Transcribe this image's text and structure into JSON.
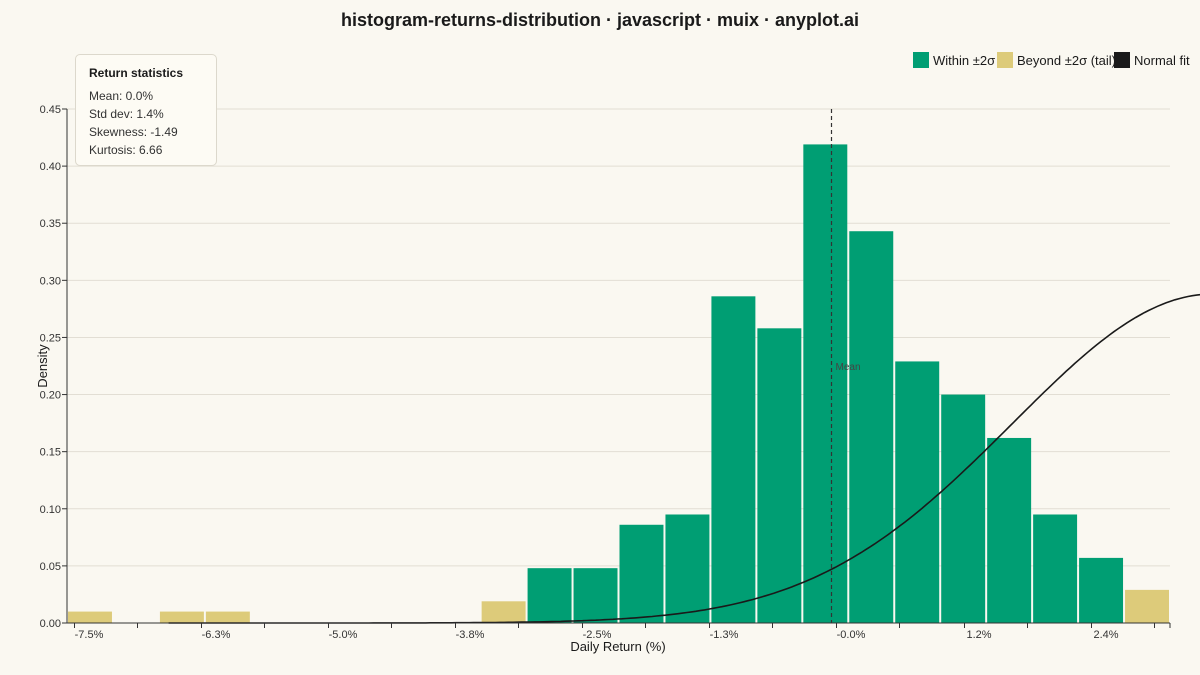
{
  "chart_data": {
    "type": "bar",
    "title": "histogram-returns-distribution · javascript · muix · anyplot.ai",
    "xlabel": "Daily Return (%)",
    "ylabel": "Density",
    "ylim": [
      0,
      0.45
    ],
    "y_ticks": [
      "0.00",
      "0.05",
      "0.10",
      "0.15",
      "0.20",
      "0.25",
      "0.30",
      "0.35",
      "0.40",
      "0.45"
    ],
    "x_tick_labels": [
      "-7.5%",
      "-6.3%",
      "-5.0%",
      "-3.8%",
      "-2.5%",
      "-1.3%",
      "-0.0%",
      "1.2%",
      "2.4%"
    ],
    "grid": "horizontal",
    "legend_position": "top-right",
    "legend": [
      {
        "label": "Within ±2σ",
        "color": "#009E73"
      },
      {
        "label": "Beyond ±2σ (tail)",
        "color": "#DDCB7A"
      },
      {
        "label": "Normal fit",
        "color": "#1A1A1A"
      }
    ],
    "bins": [
      {
        "label": "-7.5%",
        "value": 0.01,
        "group": "tail"
      },
      {
        "label": "",
        "value": 0,
        "group": "tail"
      },
      {
        "label": "-6.3%",
        "value": 0.01,
        "group": "tail"
      },
      {
        "label": "",
        "value": 0.01,
        "group": "tail"
      },
      {
        "label": "",
        "value": 0,
        "group": "tail"
      },
      {
        "label": "-5.0%",
        "value": 0,
        "group": "tail"
      },
      {
        "label": "",
        "value": 0,
        "group": "tail"
      },
      {
        "label": "-3.8%",
        "value": 0,
        "group": "tail"
      },
      {
        "label": "",
        "value": 0,
        "group": "tail"
      },
      {
        "label": "-2.5%",
        "value": 0.019,
        "group": "tail"
      },
      {
        "label": "",
        "value": 0.048,
        "group": "within"
      },
      {
        "label": "",
        "value": 0.048,
        "group": "within"
      },
      {
        "label": "-1.3%",
        "value": 0.086,
        "group": "within"
      },
      {
        "label": "",
        "value": 0.095,
        "group": "within"
      },
      {
        "label": "",
        "value": 0.286,
        "group": "within"
      },
      {
        "label": "-0.0%",
        "value": 0.258,
        "group": "within"
      },
      {
        "label": "",
        "value": 0.419,
        "group": "within"
      },
      {
        "label": "",
        "value": 0.343,
        "group": "within"
      },
      {
        "label": "1.2%",
        "value": 0.229,
        "group": "within"
      },
      {
        "label": "",
        "value": 0.2,
        "group": "within"
      },
      {
        "label": "",
        "value": 0.162,
        "group": "within"
      },
      {
        "label": "2.4%",
        "value": 0.095,
        "group": "within"
      },
      {
        "label": "",
        "value": 0.057,
        "group": "within"
      },
      {
        "label": "",
        "value": 0.029,
        "group": "tail"
      }
    ],
    "normal_fit": {
      "mean": 0.0,
      "std_dev": 1.4,
      "peak_density": 0.288
    },
    "mean_marker": {
      "label": "Mean",
      "value": 0.0
    }
  },
  "stats_box": {
    "title": "Return statistics",
    "lines": [
      "Mean: 0.0%",
      "Std dev: 1.4%",
      "Skewness: -1.49",
      "Kurtosis: 6.66"
    ]
  },
  "colors": {
    "background": "#FAF8F1",
    "within": "#009E73",
    "tail": "#DDCB7A",
    "normal_fit": "#1A1A1A",
    "grid": "#E2DED4"
  }
}
